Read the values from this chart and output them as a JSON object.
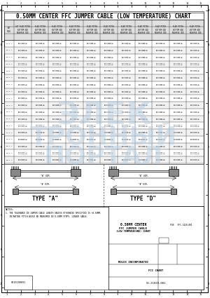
{
  "title": "0.50MM CENTER FFC JUMPER CABLE (LOW TEMPERATURE) CHART",
  "bg_color": "#ffffff",
  "text_color": "#000000",
  "watermark_color": "#b8cfe0",
  "type_a_label": "TYPE \"A\"",
  "type_d_label": "TYPE \"D\"",
  "note_text1": "NOTES:",
  "note_text2": "1. THE TOLERANCE ON JUMPER CABLE LENGTH UNLESS OTHERWISE SPECIFIED IS +0.50MM.",
  "note_text3": "   IN MATING PITCH WOULD BE MEASURED IN 0.10MM STEPS. LONGER CABLE.",
  "col_header_row1": [
    "CKT",
    "LGT FLAT PITCH",
    "FLAT PITCH",
    "FLAT PITCH",
    "FLAT PITCH",
    "FLAT PITCH",
    "FLAT PITCH",
    "FLAT PITCH",
    "FLAT PITCH",
    "FLAT PITCH",
    "FLAT PITCH",
    "FLAT PITCH"
  ],
  "col_header_row2": [
    "SIZE",
    "BOTTOM ODD",
    "BOTTOM ODD",
    "BOTTOM ODD",
    "BOTTOM ODD",
    "BOTTOM ODD",
    "BOTTOM ODD",
    "BOTTOM ODD",
    "BOTTOM ODD",
    "BOTTOM ODD",
    "BOTTOM ODD",
    "BOTTOM ODD"
  ],
  "col_header_row3": [
    "",
    "REVERSE ODD",
    "REVERSE ODD",
    "REVERSE ODD",
    "REVERSE ODD",
    "REVERSE ODD",
    "REVERSE ODD",
    "REVERSE ODD",
    "REVERSE ODD",
    "REVERSE ODD",
    "REVERSE ODD",
    "REVERSE ODD"
  ],
  "ckt_sizes": [
    "04 F L",
    "05 F L",
    "06 F L",
    "07 F L",
    "08 F L",
    "09 F L",
    "10 F L",
    "12 F L",
    "14 F L",
    "16 F L",
    "20 F L",
    "24 F L",
    "30 F L",
    "34 F L",
    "40 F L",
    "50 F L",
    "60 F L",
    "80 F L"
  ],
  "tb_title_line1": "0.50MM CENTER",
  "tb_title_line2": "FFC JUMPER CABLE",
  "tb_title_line3": "(LOW TEMPERATURE) CHART",
  "tb_company": "MOLEX INCORPORATED",
  "tb_doc_no": "SD-21020-001",
  "tb_chart": "FCC CHART"
}
